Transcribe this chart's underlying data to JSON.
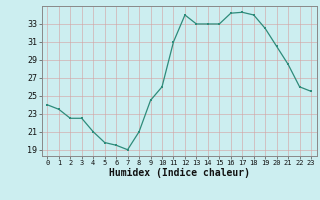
{
  "x": [
    0,
    1,
    2,
    3,
    4,
    5,
    6,
    7,
    8,
    9,
    10,
    11,
    12,
    13,
    14,
    15,
    16,
    17,
    18,
    19,
    20,
    21,
    22,
    23
  ],
  "y": [
    24.0,
    23.5,
    22.5,
    22.5,
    21.0,
    19.8,
    19.5,
    19.0,
    21.0,
    24.5,
    26.0,
    31.0,
    34.0,
    33.0,
    33.0,
    33.0,
    34.2,
    34.3,
    34.0,
    32.5,
    30.5,
    28.5,
    26.0,
    25.5
  ],
  "line_color": "#2e8b7a",
  "bg_color": "#cceef0",
  "grid_color_major": "#b0d8d8",
  "grid_color_minor": "#c8e8e8",
  "ylabel_ticks": [
    19,
    21,
    23,
    25,
    27,
    29,
    31,
    33
  ],
  "xlabel": "Humidex (Indice chaleur)",
  "xlim": [
    -0.5,
    23.5
  ],
  "ylim": [
    18.3,
    35.0
  ]
}
